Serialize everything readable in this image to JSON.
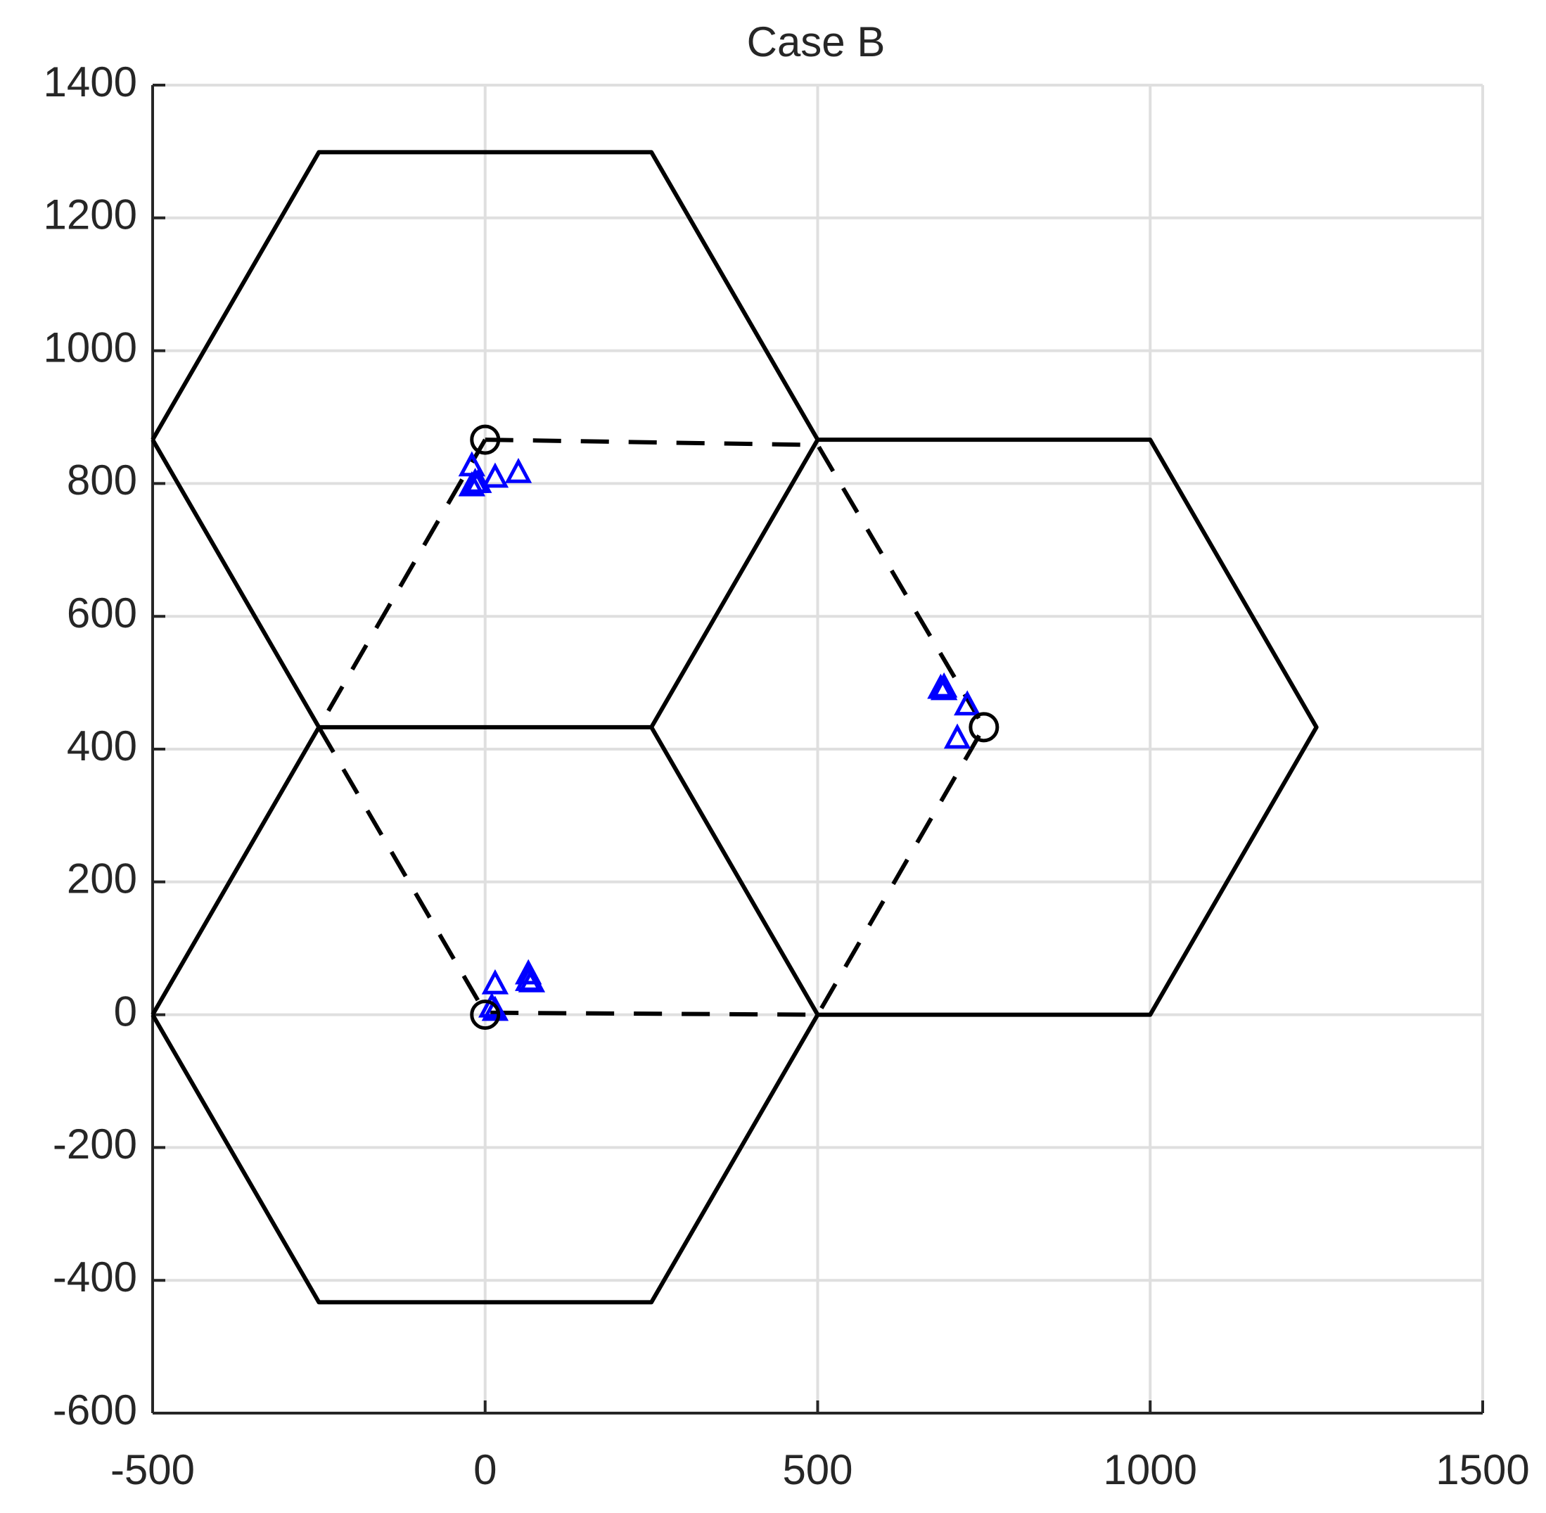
{
  "chart_data": {
    "type": "line",
    "title": "Case B",
    "xlim": [
      -500,
      1500
    ],
    "ylim": [
      -600,
      1400
    ],
    "xticks": [
      -500,
      0,
      500,
      1000,
      1500
    ],
    "yticks": [
      -600,
      -400,
      -200,
      0,
      200,
      400,
      600,
      800,
      1000,
      1200,
      1400
    ],
    "grid": true,
    "series": [
      {
        "type": "line",
        "dash": false,
        "color": "#000000",
        "x": [
          -500,
          -250,
          250,
          500,
          250,
          -250,
          -500,
          null,
          -500,
          -250,
          250,
          500,
          250,
          -250,
          -500,
          null,
          250,
          500,
          1000,
          1250,
          1000,
          500,
          250
        ],
        "y": [
          0,
          433,
          433,
          0,
          -433,
          -433,
          0,
          null,
          866,
          1299,
          1299,
          866,
          433,
          433,
          866,
          null,
          433,
          866,
          866,
          433,
          0,
          0,
          433
        ]
      },
      {
        "type": "line",
        "dash": true,
        "color": "#000000",
        "x": [
          0,
          500,
          750,
          500,
          0,
          -250,
          0
        ],
        "y": [
          866,
          858,
          433,
          0,
          3,
          433,
          866
        ]
      },
      {
        "type": "scatter",
        "marker": "triangle",
        "color": "#0000ff",
        "x": [
          -20,
          -15,
          -20,
          15,
          50,
          -10,
          685,
          690,
          725,
          710,
          690,
          15,
          10,
          15,
          65,
          65,
          70
        ],
        "y": [
          825,
          800,
          795,
          808,
          815,
          800,
          490,
          488,
          465,
          415,
          492,
          45,
          10,
          5,
          60,
          50,
          48
        ]
      },
      {
        "type": "scatter",
        "marker": "circle",
        "color": "#000000",
        "x": [
          0,
          750,
          0
        ],
        "y": [
          866,
          433,
          0
        ]
      }
    ]
  }
}
